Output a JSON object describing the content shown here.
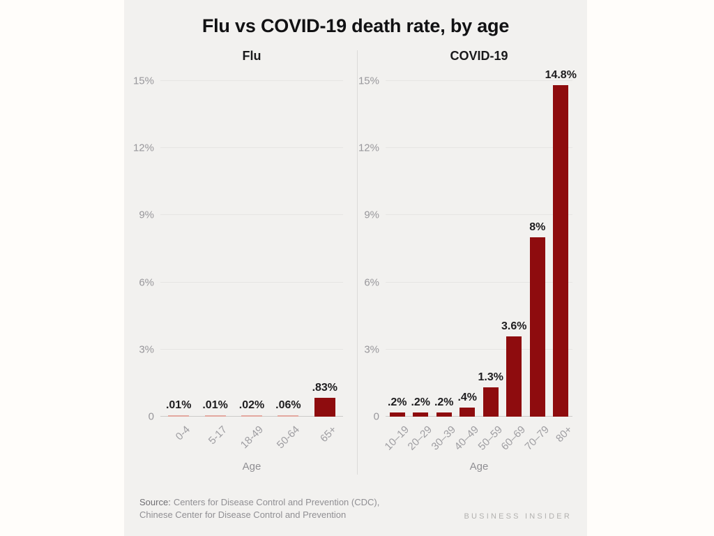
{
  "page": {
    "title": "Flu vs COVID-19 death rate, by age",
    "background": "#fffdfa",
    "panel_background": "#f2f1ef",
    "bar_color": "#8e0c0e",
    "tiny_bar_color": "#e3a79f"
  },
  "chart_data": [
    {
      "type": "bar",
      "title": "Flu",
      "categories": [
        "0-4",
        "5-17",
        "18-49",
        "50-64",
        "65+"
      ],
      "values": [
        0.01,
        0.01,
        0.02,
        0.06,
        0.83
      ],
      "value_labels": [
        ".01%",
        ".01%",
        ".02%",
        ".06%",
        ".83%"
      ],
      "xlabel": "Age",
      "ylabel": "",
      "ylim": [
        0,
        15
      ],
      "yticks": [
        15,
        12,
        9,
        6,
        3,
        0
      ],
      "ytick_labels": [
        "15%",
        "12%",
        "9%",
        "6%",
        "3%",
        "0"
      ],
      "grid": "horizontal",
      "legend": "none"
    },
    {
      "type": "bar",
      "title": "COVID-19",
      "categories": [
        "10–19",
        "20–29",
        "30–39",
        "40–49",
        "50–59",
        "60–69",
        "70–79",
        "80+"
      ],
      "values": [
        0.2,
        0.2,
        0.2,
        0.4,
        1.3,
        3.6,
        8,
        14.8
      ],
      "value_labels": [
        ".2%",
        ".2%",
        ".2%",
        ".4%",
        "1.3%",
        "3.6%",
        "8%",
        "14.8%"
      ],
      "xlabel": "Age",
      "ylabel": "",
      "ylim": [
        0,
        15
      ],
      "yticks": [
        15,
        12,
        9,
        6,
        3,
        0
      ],
      "ytick_labels": [
        "15%",
        "12%",
        "9%",
        "6%",
        "3%",
        "0"
      ],
      "grid": "horizontal",
      "legend": "none"
    }
  ],
  "footer": {
    "source_label": "Source:",
    "source_line1": "Centers for Disease Control and Prevention (CDC),",
    "source_line2": "Chinese Center for Disease Control and Prevention",
    "logo": "BUSINESS INSIDER"
  }
}
